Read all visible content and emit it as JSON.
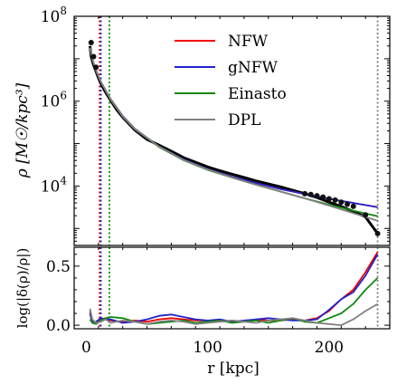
{
  "chart_data": [
    {
      "type": "line",
      "panel": "top",
      "ylabel": "ρ [M☉/kpc³]",
      "yscale": "log",
      "xlim": [
        -10,
        250
      ],
      "ylim_log10": [
        2.6,
        8.0
      ],
      "y_ticks": [
        {
          "label": "10",
          "exp": "8",
          "log10": 8
        },
        {
          "label": "10",
          "exp": "6",
          "log10": 6
        },
        {
          "label": "10",
          "exp": "4",
          "log10": 4
        }
      ],
      "legend": {
        "position": "top-right",
        "entries": [
          {
            "name": "NFW",
            "color": "#ee0000"
          },
          {
            "name": "gNFW",
            "color": "#2222cc"
          },
          {
            "name": "Einasto",
            "color": "#118811"
          },
          {
            "name": "DPL",
            "color": "#808080"
          }
        ]
      },
      "data_profile": {
        "name": "data",
        "color": "#000000",
        "r": [
          3,
          4,
          5,
          6,
          8,
          10,
          12,
          15,
          20,
          25,
          30,
          40,
          50,
          60,
          70,
          80,
          90,
          100,
          110,
          120,
          130,
          140,
          150,
          160,
          170,
          180,
          190,
          200,
          210,
          220,
          230,
          240
        ],
        "log10_rho": [
          7.3,
          7.05,
          6.95,
          6.85,
          6.7,
          6.55,
          6.42,
          6.25,
          6.02,
          5.8,
          5.62,
          5.32,
          5.1,
          4.96,
          4.82,
          4.67,
          4.56,
          4.45,
          4.36,
          4.28,
          4.2,
          4.12,
          4.05,
          3.98,
          3.9,
          3.82,
          3.73,
          3.62,
          3.52,
          3.4,
          3.27,
          2.88
        ]
      },
      "data_markers": {
        "r": [
          4,
          6,
          8,
          180,
          185,
          190,
          195,
          200,
          205,
          210,
          215,
          220,
          230,
          240
        ],
        "log10_rho": [
          7.38,
          7.05,
          6.8,
          3.82,
          3.8,
          3.77,
          3.74,
          3.7,
          3.67,
          3.62,
          3.57,
          3.52,
          3.32,
          2.88
        ]
      },
      "series": [
        {
          "name": "NFW",
          "color": "#ee0000",
          "r": [
            3,
            5,
            8,
            12,
            20,
            30,
            40,
            60,
            80,
            100,
            120,
            140,
            160,
            180,
            200,
            220,
            240
          ],
          "log10_rho": [
            7.25,
            6.98,
            6.72,
            6.45,
            6.05,
            5.65,
            5.35,
            4.92,
            4.62,
            4.4,
            4.22,
            4.07,
            3.93,
            3.81,
            3.7,
            3.6,
            3.5
          ]
        },
        {
          "name": "gNFW",
          "color": "#2222cc",
          "r": [
            3,
            5,
            8,
            12,
            20,
            30,
            40,
            60,
            80,
            100,
            120,
            140,
            160,
            180,
            200,
            220,
            240
          ],
          "log10_rho": [
            7.24,
            6.98,
            6.72,
            6.45,
            6.05,
            5.65,
            5.35,
            4.93,
            4.63,
            4.4,
            4.22,
            4.07,
            3.93,
            3.81,
            3.7,
            3.6,
            3.5
          ]
        },
        {
          "name": "Einasto",
          "color": "#118811",
          "r": [
            3,
            5,
            8,
            12,
            20,
            30,
            40,
            60,
            80,
            100,
            120,
            140,
            160,
            180,
            200,
            220,
            240
          ],
          "log10_rho": [
            7.26,
            7.0,
            6.73,
            6.46,
            6.04,
            5.64,
            5.34,
            4.92,
            4.61,
            4.38,
            4.2,
            4.03,
            3.87,
            3.71,
            3.56,
            3.42,
            3.29
          ]
        },
        {
          "name": "DPL",
          "color": "#808080",
          "r": [
            3,
            5,
            8,
            12,
            20,
            30,
            40,
            60,
            80,
            100,
            120,
            140,
            160,
            180,
            200,
            220,
            240
          ],
          "log10_rho": [
            7.26,
            7.0,
            6.73,
            6.46,
            6.04,
            5.64,
            5.34,
            4.93,
            4.62,
            4.39,
            4.2,
            4.03,
            3.87,
            3.71,
            3.54,
            3.36,
            3.18
          ]
        }
      ],
      "vertical_lines": [
        {
          "x": 11,
          "color": "#ee0000",
          "style": "dotted"
        },
        {
          "x": 12,
          "color": "#2222cc",
          "style": "dotted"
        },
        {
          "x": 19,
          "color": "#118811",
          "style": "dotted"
        },
        {
          "x": 240,
          "color": "#808080",
          "style": "dotted"
        }
      ]
    },
    {
      "type": "line",
      "panel": "bottom",
      "xlabel": "r [kpc]",
      "ylabel": "log(|δ(ρ)/ρ|)",
      "xlim": [
        -10,
        250
      ],
      "ylim": [
        -0.03,
        0.66
      ],
      "x_ticks": [
        0,
        100,
        200
      ],
      "x_tick_labels": [
        "0",
        "100",
        "200"
      ],
      "y_ticks": [
        0.0,
        0.5
      ],
      "y_tick_labels": [
        "0.0",
        "0.5"
      ],
      "series": [
        {
          "name": "NFW",
          "color": "#ee0000",
          "r": [
            3,
            5,
            8,
            12,
            16,
            20,
            30,
            40,
            50,
            60,
            70,
            80,
            90,
            100,
            110,
            120,
            130,
            140,
            150,
            160,
            170,
            180,
            190,
            200,
            210,
            220,
            230,
            240
          ],
          "values": [
            0.12,
            0.03,
            0.02,
            0.05,
            0.06,
            0.04,
            0.03,
            0.04,
            0.03,
            0.05,
            0.06,
            0.05,
            0.04,
            0.04,
            0.03,
            0.04,
            0.03,
            0.05,
            0.04,
            0.04,
            0.05,
            0.04,
            0.06,
            0.12,
            0.22,
            0.3,
            0.45,
            0.62
          ]
        },
        {
          "name": "gNFW",
          "color": "#2222cc",
          "r": [
            3,
            5,
            8,
            12,
            16,
            20,
            30,
            40,
            50,
            60,
            70,
            80,
            90,
            100,
            110,
            120,
            130,
            140,
            150,
            160,
            170,
            180,
            190,
            200,
            210,
            220,
            230,
            240
          ],
          "values": [
            0.1,
            0.02,
            0.03,
            0.06,
            0.05,
            0.05,
            0.02,
            0.03,
            0.05,
            0.08,
            0.09,
            0.07,
            0.05,
            0.04,
            0.05,
            0.03,
            0.04,
            0.05,
            0.06,
            0.05,
            0.04,
            0.04,
            0.05,
            0.13,
            0.22,
            0.28,
            0.42,
            0.6
          ]
        },
        {
          "name": "Einasto",
          "color": "#118811",
          "r": [
            3,
            5,
            8,
            12,
            16,
            20,
            30,
            40,
            50,
            60,
            70,
            80,
            90,
            100,
            110,
            120,
            130,
            140,
            150,
            160,
            170,
            180,
            190,
            200,
            210,
            220,
            230,
            240
          ],
          "values": [
            0.05,
            0.02,
            0.01,
            0.04,
            0.06,
            0.07,
            0.06,
            0.03,
            0.01,
            0.02,
            0.03,
            0.04,
            0.02,
            0.03,
            0.04,
            0.02,
            0.03,
            0.04,
            0.02,
            0.04,
            0.06,
            0.03,
            0.02,
            0.06,
            0.1,
            0.18,
            0.3,
            0.4
          ]
        },
        {
          "name": "DPL",
          "color": "#808080",
          "r": [
            3,
            5,
            8,
            12,
            16,
            20,
            30,
            40,
            50,
            60,
            70,
            80,
            90,
            100,
            110,
            120,
            130,
            140,
            150,
            160,
            170,
            180,
            190,
            200,
            210,
            220,
            230,
            240
          ],
          "values": [
            0.14,
            0.05,
            0.02,
            0.03,
            0.05,
            0.02,
            0.04,
            0.03,
            0.01,
            0.03,
            0.04,
            0.03,
            0.01,
            0.02,
            0.03,
            0.04,
            0.03,
            0.02,
            0.04,
            0.05,
            0.06,
            0.04,
            0.02,
            0.01,
            0.0,
            0.05,
            0.12,
            0.18
          ]
        }
      ],
      "vertical_lines": [
        {
          "x": 11,
          "color": "#ee0000",
          "style": "dotted"
        },
        {
          "x": 12,
          "color": "#2222cc",
          "style": "dotted"
        },
        {
          "x": 19,
          "color": "#118811",
          "style": "dotted"
        },
        {
          "x": 240,
          "color": "#808080",
          "style": "dotted"
        }
      ]
    }
  ]
}
